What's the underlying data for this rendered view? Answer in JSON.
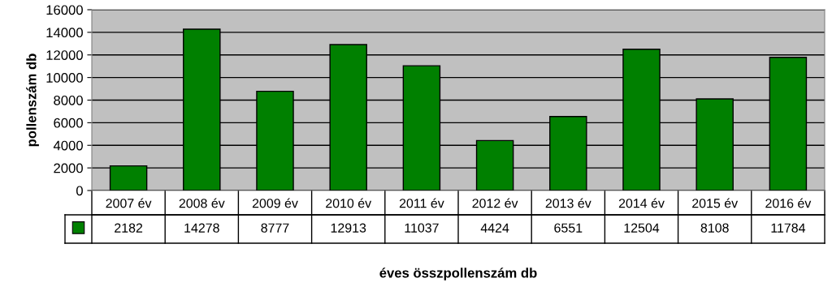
{
  "chart_data": {
    "type": "bar",
    "categories": [
      "2007 év",
      "2008 év",
      "2009 év",
      "2010 év",
      "2011 év",
      "2012 év",
      "2013 év",
      "2014 év",
      "2015 év",
      "2016 év"
    ],
    "values": [
      2182,
      14278,
      8777,
      12913,
      11037,
      4424,
      6551,
      12504,
      8108,
      11784
    ],
    "color": "#008000",
    "xlabel": "éves összpollenszám db",
    "ylabel": "pollenszám db",
    "ylim": [
      0,
      16000
    ],
    "yticks": [
      0,
      2000,
      4000,
      6000,
      8000,
      10000,
      12000,
      14000,
      16000
    ],
    "grid": "y",
    "data_labels": true
  }
}
